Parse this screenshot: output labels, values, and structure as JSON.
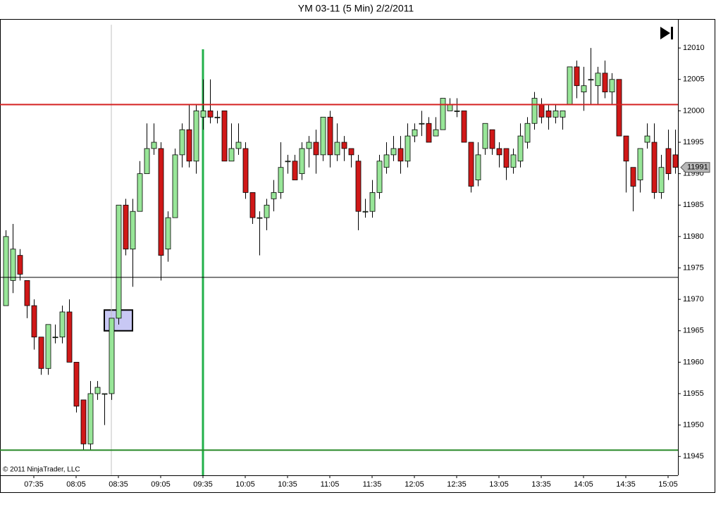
{
  "chart_data": {
    "type": "candlestick",
    "title": "YM 03-11 (5 Min)  2/2/2011",
    "copyright": "© 2011 NinjaTrader, LLC",
    "categories": [
      null,
      null,
      null,
      null,
      "07:35",
      null,
      null,
      null,
      null,
      null,
      "08:05",
      null,
      null,
      null,
      null,
      null,
      "08:35",
      null,
      null,
      null,
      null,
      null,
      "09:05",
      null,
      null,
      null,
      null,
      null,
      "09:35",
      null,
      null,
      null,
      null,
      null,
      "10:05",
      null,
      null,
      null,
      null,
      null,
      "10:35",
      null,
      null,
      null,
      null,
      null,
      "11:05",
      null,
      null,
      null,
      null,
      null,
      "11:35",
      null,
      null,
      null,
      null,
      null,
      "12:05",
      null,
      null,
      null,
      null,
      null,
      "12:35",
      null,
      null,
      null,
      null,
      null,
      "13:05",
      null,
      null,
      null,
      null,
      null,
      "13:35",
      null,
      null,
      null,
      null,
      null,
      "14:05",
      null,
      null,
      null,
      null,
      null,
      "14:35",
      null,
      null,
      null,
      null,
      null,
      "15:05",
      null
    ],
    "open": [
      11969,
      11973,
      11977,
      11973,
      11969,
      11964,
      11959,
      11964,
      11964,
      11968,
      11960,
      11954,
      11947,
      11955,
      11955,
      11955,
      11967,
      11985,
      11978,
      11984,
      11990,
      11994,
      11994,
      11978,
      11983,
      11993,
      11997,
      11992,
      11999,
      12000,
      11999,
      12000,
      11992,
      11994,
      11994,
      11987,
      11983,
      11983,
      11986,
      11987,
      11992,
      11992,
      11990,
      11994,
      11995,
      11993,
      11999,
      11993,
      11995,
      11994,
      11992,
      11984,
      11984,
      11987,
      11991,
      11993,
      11994,
      11992,
      11996,
      11998,
      11998,
      11996,
      11997,
      12000,
      12000,
      12000,
      11995,
      11989,
      11994,
      11997,
      11994,
      11994,
      11991,
      11992,
      11995,
      11998,
      12001,
      12000,
      11999,
      11999,
      12001,
      12007,
      12003,
      12005,
      12004,
      12006,
      12003,
      12005,
      11996,
      11991,
      11989,
      11995,
      11995,
      11987,
      11994,
      11993
    ],
    "high": [
      11981,
      11982,
      11978,
      11973,
      11970,
      11964,
      11966,
      11966,
      11969,
      11970,
      11960,
      11954,
      11957,
      11957,
      11955,
      11967,
      11985,
      11986,
      11986,
      11992,
      11998,
      11998,
      11995,
      11984,
      11994,
      11998,
      12001,
      12001,
      12005,
      12005,
      12000,
      12000,
      11998,
      11998,
      11995,
      11987,
      11984,
      11986,
      11989,
      11995,
      11993,
      11993,
      11995,
      11996,
      11997,
      11999,
      12000,
      11998,
      11996,
      11994,
      11993,
      11986,
      11989,
      11993,
      11995,
      11996,
      11996,
      11998,
      11998,
      12000,
      11999,
      11999,
      12002,
      12002,
      12002,
      12000,
      11995,
      11995,
      11998,
      11997,
      11995,
      11994,
      11994,
      11998,
      11999,
      12003,
      12002,
      12001,
      12001,
      12000,
      12007,
      12008,
      12007,
      12010,
      12007,
      12008,
      12006,
      12005,
      11996,
      11991,
      11994,
      11998,
      11998,
      11993,
      11997,
      11997
    ],
    "low": [
      11969,
      11971,
      11973,
      11967,
      11962,
      11958,
      11958,
      11963,
      11963,
      11960,
      11952,
      11946,
      11946,
      11954,
      11950,
      11954,
      11966,
      11977,
      11972,
      11984,
      11990,
      11993,
      11973,
      11976,
      11983,
      11991,
      11991,
      11990,
      11997,
      11998,
      11998,
      11992,
      11992,
      11993,
      11986,
      11982,
      11977,
      11981,
      11984,
      11986,
      11990,
      11989,
      11989,
      11991,
      11990,
      11992,
      11991,
      11992,
      11992,
      11991,
      11981,
      11983,
      11983,
      11986,
      11990,
      11992,
      11990,
      11991,
      11995,
      11996,
      11995,
      11996,
      11997,
      12000,
      11999,
      11995,
      11987,
      11988,
      11993,
      11993,
      11991,
      11989,
      11990,
      11991,
      11994,
      11997,
      11998,
      11997,
      11998,
      11997,
      12001,
      12002,
      12000,
      12001,
      12001,
      12002,
      12001,
      11996,
      11987,
      11984,
      11987,
      11994,
      11986,
      11986,
      11989,
      11990
    ],
    "close": [
      11980,
      11978,
      11974,
      11969,
      11964,
      11959,
      11966,
      11964,
      11968,
      11960,
      11953,
      11947,
      11955,
      11956,
      11955,
      11967,
      11985,
      11978,
      11984,
      11990,
      11994,
      11995,
      11977,
      11983,
      11993,
      11997,
      11992,
      12000,
      12000,
      11999,
      11999,
      11992,
      11994,
      11995,
      11987,
      11983,
      11983,
      11985,
      11987,
      11991,
      11992,
      11989,
      11994,
      11995,
      11993,
      11999,
      11993,
      11995,
      11994,
      11993,
      11984,
      11984,
      11987,
      11992,
      11993,
      11994,
      11992,
      11996,
      11997,
      11998,
      11995,
      11997,
      12002,
      12001,
      12000,
      11995,
      11988,
      11993,
      11998,
      11994,
      11993,
      11991,
      11993,
      11996,
      11998,
      12002,
      11999,
      11999,
      12000,
      12000,
      12007,
      12004,
      12004,
      12005,
      12006,
      12003,
      12005,
      11996,
      11992,
      11988,
      11994,
      11996,
      11987,
      11991,
      11990,
      11991
    ],
    "up_color": "#98e698",
    "down_color": "#d01818",
    "ylim": [
      11942,
      12014.5
    ],
    "yticks": [
      11945,
      11950,
      11955,
      11960,
      11965,
      11970,
      11975,
      11980,
      11985,
      11990,
      11995,
      12000,
      12005,
      12010
    ],
    "hlines": [
      {
        "value": 12001,
        "color": "#d42020"
      },
      {
        "value": 11973.5,
        "color": "#000000"
      },
      {
        "value": 11946,
        "color": "#2a8a2a"
      }
    ],
    "vlines": [
      {
        "x": 15,
        "top": 12013.7,
        "color": "#c0c0c0"
      },
      {
        "x": 28,
        "top": 12009.8,
        "color": "#22b04a"
      }
    ],
    "box": {
      "x": [
        14,
        18
      ],
      "y": [
        11965,
        11968.3
      ],
      "color": "#c8c8f4"
    },
    "last_price": 11991
  }
}
